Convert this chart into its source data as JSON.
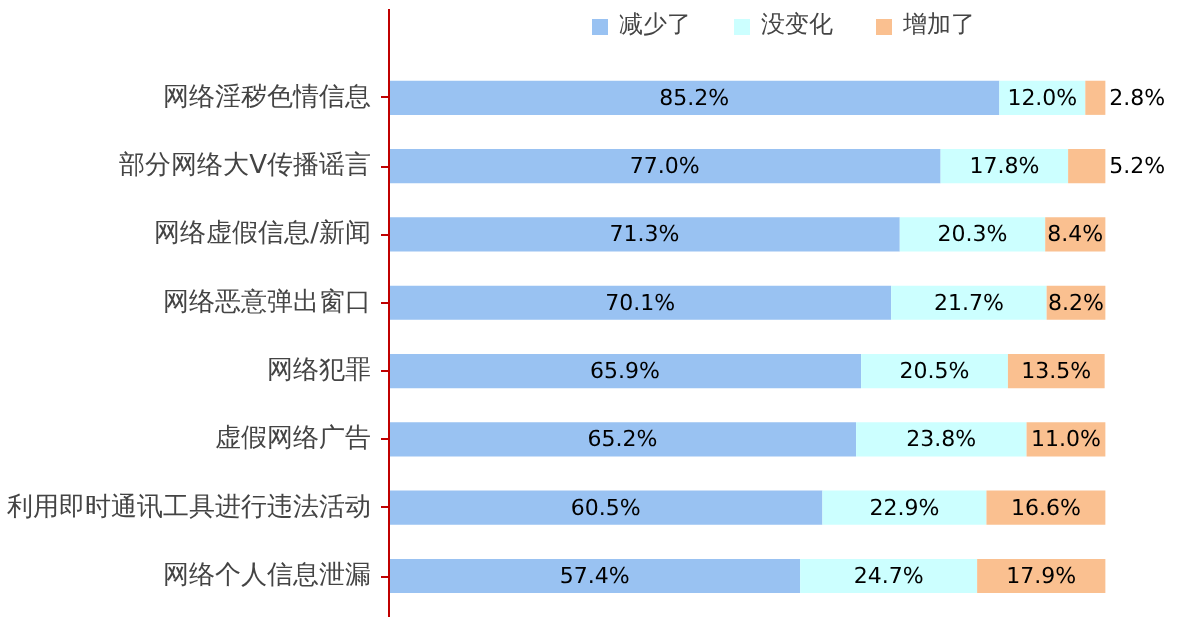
{
  "chart_data": {
    "type": "bar",
    "orientation": "horizontal",
    "stacked": true,
    "legend": "top",
    "tick_labels": "y",
    "grid": false,
    "categories": [
      "网络淫秽色情信息",
      "部分网络大V传播谣言",
      "网络虚假信息/新闻",
      "网络恶意弹出窗口",
      "网络犯罪",
      "虚假网络广告",
      "利用即时通讯工具进行违法活动",
      "网络个人信息泄漏"
    ],
    "series": [
      {
        "name": "减少了",
        "color": "#99c2f2",
        "values": [
          85.2,
          77.0,
          71.3,
          70.1,
          65.9,
          65.2,
          60.5,
          57.4
        ],
        "value_labels": [
          "85.2%",
          "77.0%",
          "71.3%",
          "70.1%",
          "65.9%",
          "65.2%",
          "60.5%",
          "57.4%"
        ]
      },
      {
        "name": "没变化",
        "color": "#ccffff",
        "values": [
          12.0,
          17.8,
          20.3,
          21.7,
          20.5,
          23.8,
          22.9,
          24.7
        ],
        "value_labels": [
          "12.0%",
          "17.8%",
          "20.3%",
          "21.7%",
          "20.5%",
          "23.8%",
          "22.9%",
          "24.7%"
        ]
      },
      {
        "name": "增加了",
        "color": "#fac090",
        "values": [
          2.8,
          5.2,
          8.4,
          8.2,
          13.5,
          11.0,
          16.6,
          17.9
        ],
        "value_labels": [
          "2.8%",
          "5.2%",
          "8.4%",
          "8.2%",
          "13.5%",
          "11.0%",
          "16.6%",
          "17.9%"
        ]
      }
    ]
  }
}
